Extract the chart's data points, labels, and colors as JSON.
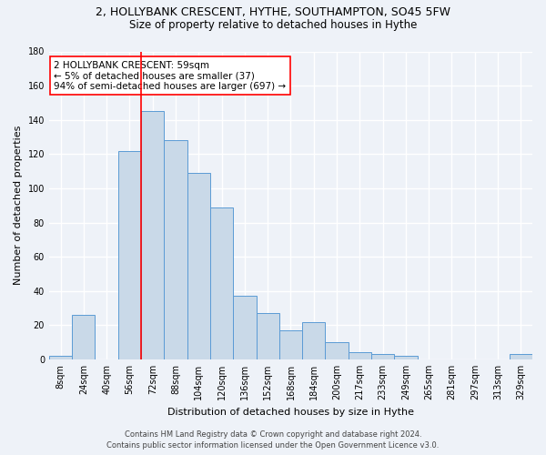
{
  "title": "2, HOLLYBANK CRESCENT, HYTHE, SOUTHAMPTON, SO45 5FW",
  "subtitle": "Size of property relative to detached houses in Hythe",
  "xlabel": "Distribution of detached houses by size in Hythe",
  "ylabel": "Number of detached properties",
  "categories": [
    "8sqm",
    "24sqm",
    "40sqm",
    "56sqm",
    "72sqm",
    "88sqm",
    "104sqm",
    "120sqm",
    "136sqm",
    "152sqm",
    "168sqm",
    "184sqm",
    "200sqm",
    "217sqm",
    "233sqm",
    "249sqm",
    "265sqm",
    "281sqm",
    "297sqm",
    "313sqm",
    "329sqm"
  ],
  "values": [
    2,
    26,
    0,
    122,
    145,
    128,
    109,
    89,
    37,
    27,
    17,
    22,
    10,
    4,
    3,
    2,
    0,
    0,
    0,
    0,
    3
  ],
  "bar_color": "#c9d9e8",
  "bar_edge_color": "#5b9bd5",
  "vline_x": 3.5,
  "vline_color": "red",
  "annotation_title": "2 HOLLYBANK CRESCENT: 59sqm",
  "annotation_line1": "← 5% of detached houses are smaller (37)",
  "annotation_line2": "94% of semi-detached houses are larger (697) →",
  "annotation_box_color": "white",
  "annotation_box_edge_color": "red",
  "ylim": [
    0,
    180
  ],
  "yticks": [
    0,
    20,
    40,
    60,
    80,
    100,
    120,
    140,
    160,
    180
  ],
  "footer_line1": "Contains HM Land Registry data © Crown copyright and database right 2024.",
  "footer_line2": "Contains public sector information licensed under the Open Government Licence v3.0.",
  "bg_color": "#eef2f8",
  "plot_bg_color": "#eef2f8",
  "grid_color": "white",
  "title_fontsize": 9,
  "subtitle_fontsize": 8.5,
  "xlabel_fontsize": 8,
  "ylabel_fontsize": 8,
  "tick_fontsize": 7,
  "footer_fontsize": 6,
  "annotation_fontsize": 7.5
}
